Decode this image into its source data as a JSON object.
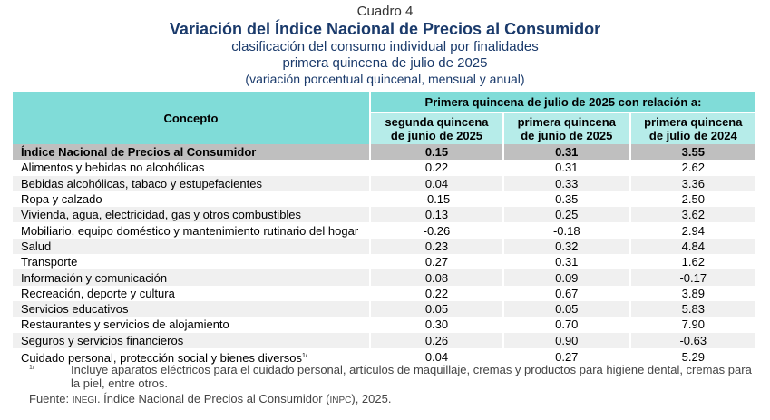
{
  "titles": {
    "cuadro": "Cuadro 4",
    "main": "Variación del Índice Nacional de Precios al Consumidor",
    "subtitle": "clasificación del consumo individual por finalidades",
    "period": "primera quincena de julio de 2025",
    "note": "(variación porcentual quincenal, mensual y anual)"
  },
  "table": {
    "concept_header": "Concepto",
    "group_header": "Primera quincena de julio de 2025 con relación a:",
    "columns": [
      {
        "line1": "segunda quincena",
        "line2": "de junio de 2025"
      },
      {
        "line1": "primera quincena",
        "line2": "de junio de 2025"
      },
      {
        "line1": "primera quincena",
        "line2": "de julio de 2024"
      }
    ],
    "total": {
      "concept": "Índice Nacional de Precios al Consumidor",
      "values": [
        "0.15",
        "0.31",
        "3.55"
      ]
    },
    "rows": [
      {
        "concept": "Alimentos y bebidas no alcohólicas",
        "values": [
          "0.22",
          "0.31",
          "2.62"
        ]
      },
      {
        "concept": "Bebidas alcohólicas, tabaco y estupefacientes",
        "values": [
          "0.04",
          "0.33",
          "3.36"
        ]
      },
      {
        "concept": "Ropa y calzado",
        "values": [
          "-0.15",
          "0.35",
          "2.50"
        ]
      },
      {
        "concept": "Vivienda, agua, electricidad, gas y otros combustibles",
        "values": [
          "0.13",
          "0.25",
          "3.62"
        ]
      },
      {
        "concept": "Mobiliario, equipo doméstico y mantenimiento rutinario del hogar",
        "values": [
          "-0.26",
          "-0.18",
          "2.94"
        ]
      },
      {
        "concept": "Salud",
        "values": [
          "0.23",
          "0.32",
          "4.84"
        ]
      },
      {
        "concept": "Transporte",
        "values": [
          "0.27",
          "0.31",
          "1.62"
        ]
      },
      {
        "concept": "Información y comunicación",
        "values": [
          "0.08",
          "0.09",
          "-0.17"
        ]
      },
      {
        "concept": "Recreación, deporte y cultura",
        "values": [
          "0.22",
          "0.67",
          "3.89"
        ]
      },
      {
        "concept": "Servicios educativos",
        "values": [
          "0.05",
          "0.05",
          "5.83"
        ]
      },
      {
        "concept": "Restaurantes y servicios de alojamiento",
        "values": [
          "0.30",
          "0.70",
          "7.90"
        ]
      },
      {
        "concept": "Seguros y servicios financieros",
        "values": [
          "0.26",
          "0.90",
          "-0.63"
        ]
      },
      {
        "concept": "Cuidado personal, protección social y bienes diversos",
        "footnote_ref": "1/",
        "values": [
          "0.04",
          "0.27",
          "5.29"
        ]
      }
    ]
  },
  "footnote": {
    "mark": "1/",
    "text": "Incluye aparatos eléctricos para el cuidado personal, artículos de maquillaje, cremas y productos para higiene dental, cremas para la piel, entre otros."
  },
  "source": {
    "label": "Fuente:",
    "org": "INEGI",
    "text_before": ". Índice Nacional de Precios al Consumidor (",
    "abbr": "INPC",
    "text_after": "), 2025."
  },
  "colors": {
    "title": "#1a3a6b",
    "header_dark": "#80dcd8",
    "header_light": "#b6ece9",
    "total_row": "#bfbfbf",
    "stripe": "#f0f0f0"
  }
}
